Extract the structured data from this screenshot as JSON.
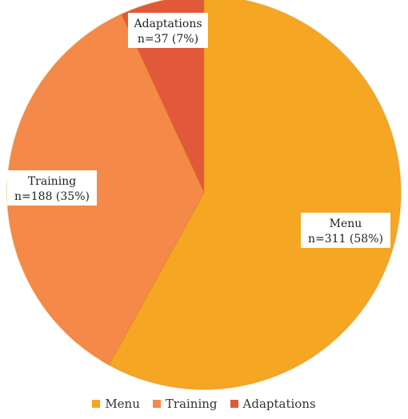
{
  "chart_data": {
    "type": "pie",
    "slices": [
      {
        "name": "Menu",
        "value": 311,
        "percent": 58,
        "label_line1": "Menu",
        "label_line2": "n=311 (58%)",
        "color": "#F5A623"
      },
      {
        "name": "Training",
        "value": 188,
        "percent": 35,
        "label_line1": "Training",
        "label_line2": "n=188 (35%)",
        "color": "#F5894A"
      },
      {
        "name": "Adaptations",
        "value": 37,
        "percent": 7,
        "label_line1": "Adaptations",
        "label_line2": "n=37 (7%)",
        "color": "#E2583A"
      }
    ],
    "legend": {
      "placement": "bottom",
      "items": [
        "Menu",
        "Training",
        "Adaptations"
      ]
    },
    "start_angle": "12 o'clock",
    "direction": "clockwise"
  }
}
